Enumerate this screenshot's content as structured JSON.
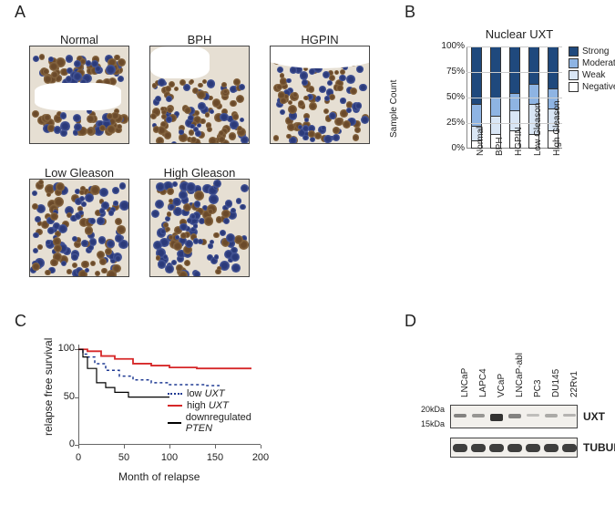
{
  "panelLabels": {
    "A": "A",
    "B": "B",
    "C": "C",
    "D": "D"
  },
  "panelA": {
    "titles": [
      "Normal",
      "BPH",
      "HGPIN",
      "Low Gleason",
      "High Gleason"
    ]
  },
  "panelB": {
    "title": "Nuclear UXT",
    "ylabel": "Sample Count",
    "yticks": [
      "0%",
      "25%",
      "50%",
      "75%",
      "100%"
    ],
    "categories": [
      "Normal",
      "BPH",
      "HGPIN",
      "Low Gleason",
      "High Gleason"
    ],
    "series": [
      "Negative",
      "Weak",
      "Moderate",
      "Strong"
    ],
    "colors": {
      "Strong": "#1f497d",
      "Moderate": "#8eb4e3",
      "Weak": "#d9e6f5",
      "Negative": "#ffffff"
    },
    "data": {
      "Normal": {
        "Negative": 7,
        "Weak": 15,
        "Moderate": 22,
        "Strong": 56
      },
      "BPH": {
        "Negative": 14,
        "Weak": 18,
        "Moderate": 18,
        "Strong": 50
      },
      "HGPIN": {
        "Negative": 17,
        "Weak": 20,
        "Moderate": 18,
        "Strong": 45
      },
      "Low Gleason": {
        "Negative": 14,
        "Weak": 30,
        "Moderate": 20,
        "Strong": 36
      },
      "High Gleason": {
        "Negative": 17,
        "Weak": 22,
        "Moderate": 20,
        "Strong": 41
      }
    },
    "legendLabels": [
      "Strong",
      "Moderate",
      "Weak",
      "Negative"
    ]
  },
  "panelC": {
    "ylabel": "relapse free survival",
    "xlabel": "Month of relapse",
    "yticks": [
      0,
      50,
      100
    ],
    "xticks": [
      0,
      50,
      100,
      150,
      200
    ],
    "xmax": 200,
    "ymax": 105,
    "series": {
      "lowUXT": {
        "label": "low UXT",
        "italicStart": 4,
        "color": "#1f3a93",
        "dash": "3,3",
        "width": 1.5,
        "points": [
          [
            0,
            100
          ],
          [
            5,
            95
          ],
          [
            10,
            92
          ],
          [
            18,
            85
          ],
          [
            30,
            78
          ],
          [
            45,
            72
          ],
          [
            60,
            68
          ],
          [
            80,
            65
          ],
          [
            100,
            63
          ],
          [
            140,
            62
          ],
          [
            155,
            62
          ]
        ]
      },
      "highUXT": {
        "label": "high UXT",
        "italicStart": 5,
        "color": "#d62728",
        "dash": "",
        "width": 1.8,
        "points": [
          [
            0,
            100
          ],
          [
            10,
            98
          ],
          [
            25,
            93
          ],
          [
            40,
            90
          ],
          [
            60,
            85
          ],
          [
            80,
            83
          ],
          [
            100,
            81
          ],
          [
            130,
            80
          ],
          [
            170,
            80
          ],
          [
            190,
            80
          ]
        ]
      },
      "pten": {
        "label": "downregulated PTEN",
        "italicStart": 14,
        "color": "#000000",
        "dash": "",
        "width": 1.2,
        "points": [
          [
            0,
            100
          ],
          [
            5,
            92
          ],
          [
            10,
            80
          ],
          [
            20,
            65
          ],
          [
            30,
            60
          ],
          [
            40,
            55
          ],
          [
            55,
            50
          ],
          [
            75,
            50
          ],
          [
            100,
            50
          ]
        ]
      }
    },
    "legendOrder": [
      "lowUXT",
      "highUXT",
      "pten"
    ]
  },
  "panelD": {
    "lanes": [
      "LNCaP",
      "LAPC4",
      "VCaP",
      "LNCaP-abl",
      "PC3",
      "DU145",
      "22Rv1"
    ],
    "sizeMarkers": [
      "20kDa",
      "15kDa"
    ],
    "bands": {
      "UXT": {
        "label": "UXT",
        "intensity": [
          0.55,
          0.45,
          0.95,
          0.55,
          0.25,
          0.35,
          0.3
        ],
        "thickness": [
          4,
          4,
          8,
          5,
          3,
          3.5,
          3
        ]
      },
      "TUBULIN": {
        "label": "TUBULIN",
        "intensity": [
          0.85,
          0.85,
          0.85,
          0.85,
          0.85,
          0.85,
          0.85
        ],
        "thickness": [
          9,
          9,
          9,
          9,
          9,
          9,
          9
        ]
      }
    },
    "laneWidth": 20,
    "laneGap": 0
  }
}
